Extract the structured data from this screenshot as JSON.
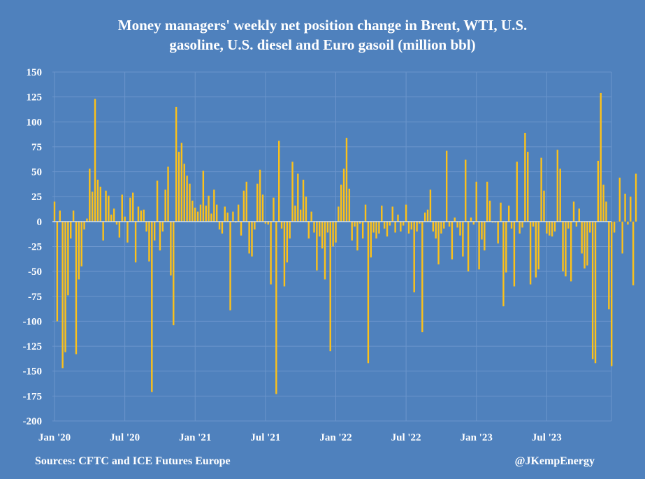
{
  "chart_data": {
    "type": "bar",
    "title_line1": "Money managers' weekly net position change in Brent, WTI, U.S.",
    "title_line2": "gasoline, U.S. diesel and Euro gasoil (million bbl)",
    "xlabel": "",
    "ylabel": "",
    "ylim": [
      -200,
      150
    ],
    "yticks": [
      150,
      125,
      100,
      75,
      50,
      25,
      0,
      -25,
      -50,
      -75,
      -100,
      -125,
      -150,
      -175,
      -200
    ],
    "x_tick_labels": [
      "Jan '20",
      "Jul '20",
      "Jan '21",
      "Jul '21",
      "Jan '22",
      "Jul '22",
      "Jan '23",
      "Jul '23"
    ],
    "x_tick_weeks": [
      0,
      26,
      52,
      78,
      104,
      130,
      156,
      182
    ],
    "grid": true,
    "bar_color": "#fcc11a",
    "values": [
      20,
      -100,
      11,
      -147,
      -131,
      -74,
      -17,
      11,
      -133,
      -58,
      -45,
      -8,
      3,
      53,
      30,
      123,
      42,
      35,
      -19,
      31,
      26,
      7,
      13,
      -3,
      -16,
      27,
      5,
      -21,
      24,
      29,
      -41,
      15,
      11,
      12,
      -10,
      -40,
      -171,
      -19,
      41,
      -29,
      -10,
      32,
      55,
      -54,
      -104,
      115,
      70,
      79,
      58,
      46,
      38,
      21,
      14,
      10,
      17,
      51,
      16,
      26,
      8,
      32,
      17,
      -8,
      -12,
      15,
      9,
      -89,
      10,
      -1,
      17,
      -14,
      31,
      40,
      -32,
      -35,
      -8,
      38,
      52,
      27,
      -2,
      -3,
      -63,
      24,
      -173,
      81,
      -7,
      -65,
      -41,
      -17,
      60,
      16,
      48,
      12,
      42,
      25,
      -17,
      10,
      -11,
      -49,
      -15,
      -27,
      -58,
      -11,
      -130,
      -25,
      -21,
      15,
      37,
      53,
      84,
      33,
      -19,
      -5,
      -29,
      -2,
      -17,
      17,
      -142,
      -36,
      -11,
      -17,
      -12,
      16,
      -7,
      -15,
      -4,
      15,
      -11,
      7,
      -10,
      -4,
      17,
      -12,
      -8,
      -71,
      -10,
      -2,
      -111,
      9,
      12,
      32,
      -10,
      -17,
      -43,
      -12,
      -7,
      71,
      -5,
      -38,
      4,
      -6,
      -14,
      -35,
      62,
      -50,
      4,
      -3,
      40,
      -48,
      -18,
      -29,
      40,
      21,
      -1,
      -1,
      -22,
      19,
      -85,
      -51,
      16,
      -7,
      -65,
      60,
      -12,
      -6,
      89,
      70,
      -63,
      -5,
      -56,
      -48,
      64,
      31,
      -12,
      -14,
      -15,
      -10,
      72,
      53,
      -50,
      -55,
      -7,
      -60,
      20,
      -5,
      13,
      -32,
      -47,
      -44,
      -11,
      -138,
      -142,
      61,
      129,
      37,
      20,
      -88,
      -145,
      -11,
      0,
      44,
      -32,
      28,
      -3,
      25,
      -64,
      48
    ],
    "sources": "Sources: CFTC and ICE Futures Europe",
    "credit": "@JKempEnergy"
  }
}
